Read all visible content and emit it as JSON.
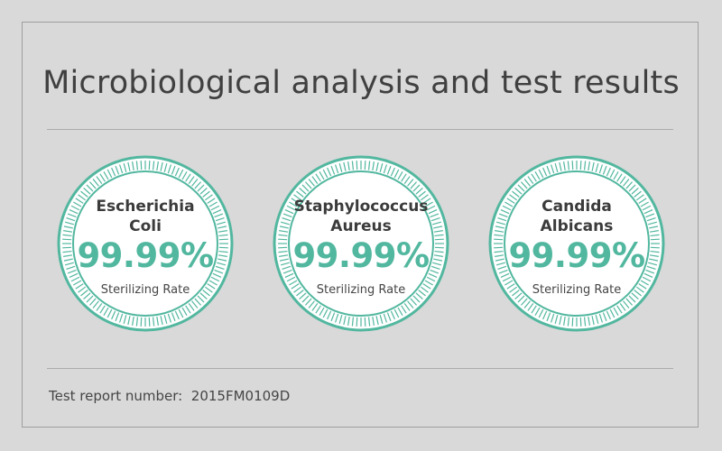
{
  "title": "Microbiological analysis and test results",
  "colors": {
    "background": "#d9d9d9",
    "accent": "#52b79f",
    "text": "#404040"
  },
  "results": [
    {
      "name_line1": "Escherichia",
      "name_line2": "Coli",
      "rate": "99.99%",
      "rate_label": "Sterilizing Rate"
    },
    {
      "name_line1": "Staphylococcus",
      "name_line2": "Aureus",
      "rate": "99.99%",
      "rate_label": "Sterilizing Rate"
    },
    {
      "name_line1": "Candida",
      "name_line2": "Albicans",
      "rate": "99.99%",
      "rate_label": "Sterilizing Rate"
    }
  ],
  "footer": {
    "label": "Test report number:",
    "value": "2015FM0109D"
  }
}
